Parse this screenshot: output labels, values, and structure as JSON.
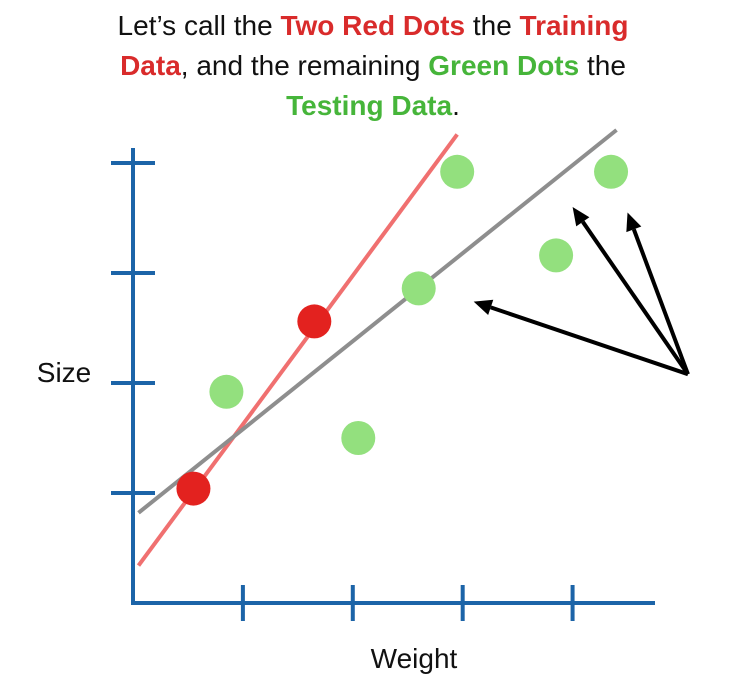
{
  "caption": {
    "p1": "Let’s call the ",
    "p2": "Two Red Dots",
    "p3": " the ",
    "p4": "Training",
    "p5": "Data",
    "p6": ", and the remaining ",
    "p7": "Green Dots",
    "p8": " the",
    "p9": "Testing Data",
    "p10": "."
  },
  "chart_data": {
    "type": "scatter",
    "title": "",
    "xlabel": "Weight",
    "ylabel": "Size",
    "xlim": [
      0,
      4.75
    ],
    "ylim": [
      0,
      4.2
    ],
    "xticks": [
      1,
      2,
      3,
      4
    ],
    "yticks": [
      1,
      2,
      3,
      4
    ],
    "grid": false,
    "series": [
      {
        "name": "Two Red Dots",
        "color": "#e3221f",
        "points": [
          [
            0.55,
            1.04
          ],
          [
            1.65,
            2.56
          ]
        ]
      },
      {
        "name": "Green Dots",
        "color": "#93e07e",
        "points": [
          [
            0.85,
            1.92
          ],
          [
            2.05,
            1.5
          ],
          [
            2.6,
            2.86
          ],
          [
            2.95,
            3.92
          ],
          [
            3.85,
            3.16
          ],
          [
            4.35,
            3.92
          ]
        ]
      }
    ],
    "lines": [
      {
        "color": "#f07070",
        "x": [
          0.05,
          2.95
        ],
        "y": [
          0.34,
          4.26
        ]
      },
      {
        "color": "#8e8e8e",
        "x": [
          0.05,
          4.4
        ],
        "y": [
          0.82,
          4.3
        ]
      }
    ],
    "annotation": {
      "type": "arrows",
      "color": "#000000",
      "origin": [
        5.05,
        2.08
      ],
      "targets": [
        [
          3.1,
          2.74
        ],
        [
          4.0,
          3.6
        ],
        [
          4.5,
          3.55
        ]
      ]
    }
  }
}
